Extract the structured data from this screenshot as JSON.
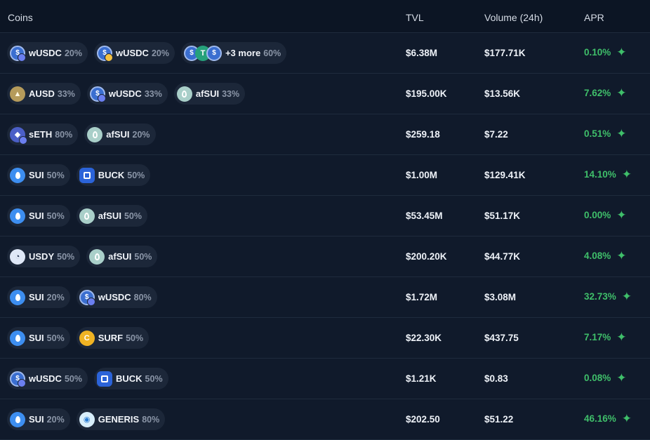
{
  "header": {
    "coins": "Coins",
    "tvl": "TVL",
    "volume": "Volume (24h)",
    "apr": "APR"
  },
  "rows": [
    {
      "coins": [
        {
          "symbol": "wUSDC",
          "pct": "20%",
          "icon": "usdc-icon",
          "badge": "eth"
        },
        {
          "symbol": "wUSDC",
          "pct": "20%",
          "icon": "usdc-icon",
          "badge": "sol"
        },
        {
          "symbol": "+3 more",
          "pct": "60%",
          "icon": "multi-coin-icon"
        }
      ],
      "tvl": "$6.38M",
      "volume": "$177.71K",
      "apr": "0.10%"
    },
    {
      "coins": [
        {
          "symbol": "AUSD",
          "pct": "33%",
          "icon": "ausd-icon"
        },
        {
          "symbol": "wUSDC",
          "pct": "33%",
          "icon": "usdc-icon",
          "badge": "eth"
        },
        {
          "symbol": "afSUI",
          "pct": "33%",
          "icon": "afsui-icon"
        }
      ],
      "tvl": "$195.00K",
      "volume": "$13.56K",
      "apr": "7.62%"
    },
    {
      "coins": [
        {
          "symbol": "sETH",
          "pct": "80%",
          "icon": "eth-icon",
          "badge": "eth"
        },
        {
          "symbol": "afSUI",
          "pct": "20%",
          "icon": "afsui-icon"
        }
      ],
      "tvl": "$259.18",
      "volume": "$7.22",
      "apr": "0.51%"
    },
    {
      "coins": [
        {
          "symbol": "SUI",
          "pct": "50%",
          "icon": "sui-icon"
        },
        {
          "symbol": "BUCK",
          "pct": "50%",
          "icon": "buck-icon"
        }
      ],
      "tvl": "$1.00M",
      "volume": "$129.41K",
      "apr": "14.10%"
    },
    {
      "coins": [
        {
          "symbol": "SUI",
          "pct": "50%",
          "icon": "sui-icon"
        },
        {
          "symbol": "afSUI",
          "pct": "50%",
          "icon": "afsui-icon"
        }
      ],
      "tvl": "$53.45M",
      "volume": "$51.17K",
      "apr": "0.00%"
    },
    {
      "coins": [
        {
          "symbol": "USDY",
          "pct": "50%",
          "icon": "usdy-icon"
        },
        {
          "symbol": "afSUI",
          "pct": "50%",
          "icon": "afsui-icon"
        }
      ],
      "tvl": "$200.20K",
      "volume": "$44.77K",
      "apr": "4.08%"
    },
    {
      "coins": [
        {
          "symbol": "SUI",
          "pct": "20%",
          "icon": "sui-icon"
        },
        {
          "symbol": "wUSDC",
          "pct": "80%",
          "icon": "usdc-icon",
          "badge": "eth"
        }
      ],
      "tvl": "$1.72M",
      "volume": "$3.08M",
      "apr": "32.73%"
    },
    {
      "coins": [
        {
          "symbol": "SUI",
          "pct": "50%",
          "icon": "sui-icon"
        },
        {
          "symbol": "SURF",
          "pct": "50%",
          "icon": "surf-icon"
        }
      ],
      "tvl": "$22.30K",
      "volume": "$437.75",
      "apr": "7.17%"
    },
    {
      "coins": [
        {
          "symbol": "wUSDC",
          "pct": "50%",
          "icon": "usdc-icon",
          "badge": "eth"
        },
        {
          "symbol": "BUCK",
          "pct": "50%",
          "icon": "buck-icon"
        }
      ],
      "tvl": "$1.21K",
      "volume": "$0.83",
      "apr": "0.08%"
    },
    {
      "coins": [
        {
          "symbol": "SUI",
          "pct": "20%",
          "icon": "sui-icon"
        },
        {
          "symbol": "GENERIS",
          "pct": "80%",
          "icon": "generis-icon"
        }
      ],
      "tvl": "$202.50",
      "volume": "$51.22",
      "apr": "46.16%"
    }
  ],
  "colors": {
    "background": "#101a2b",
    "pill": "#1c2739",
    "apr_green": "#3fbf6a",
    "divider": "#1f2b3d"
  }
}
